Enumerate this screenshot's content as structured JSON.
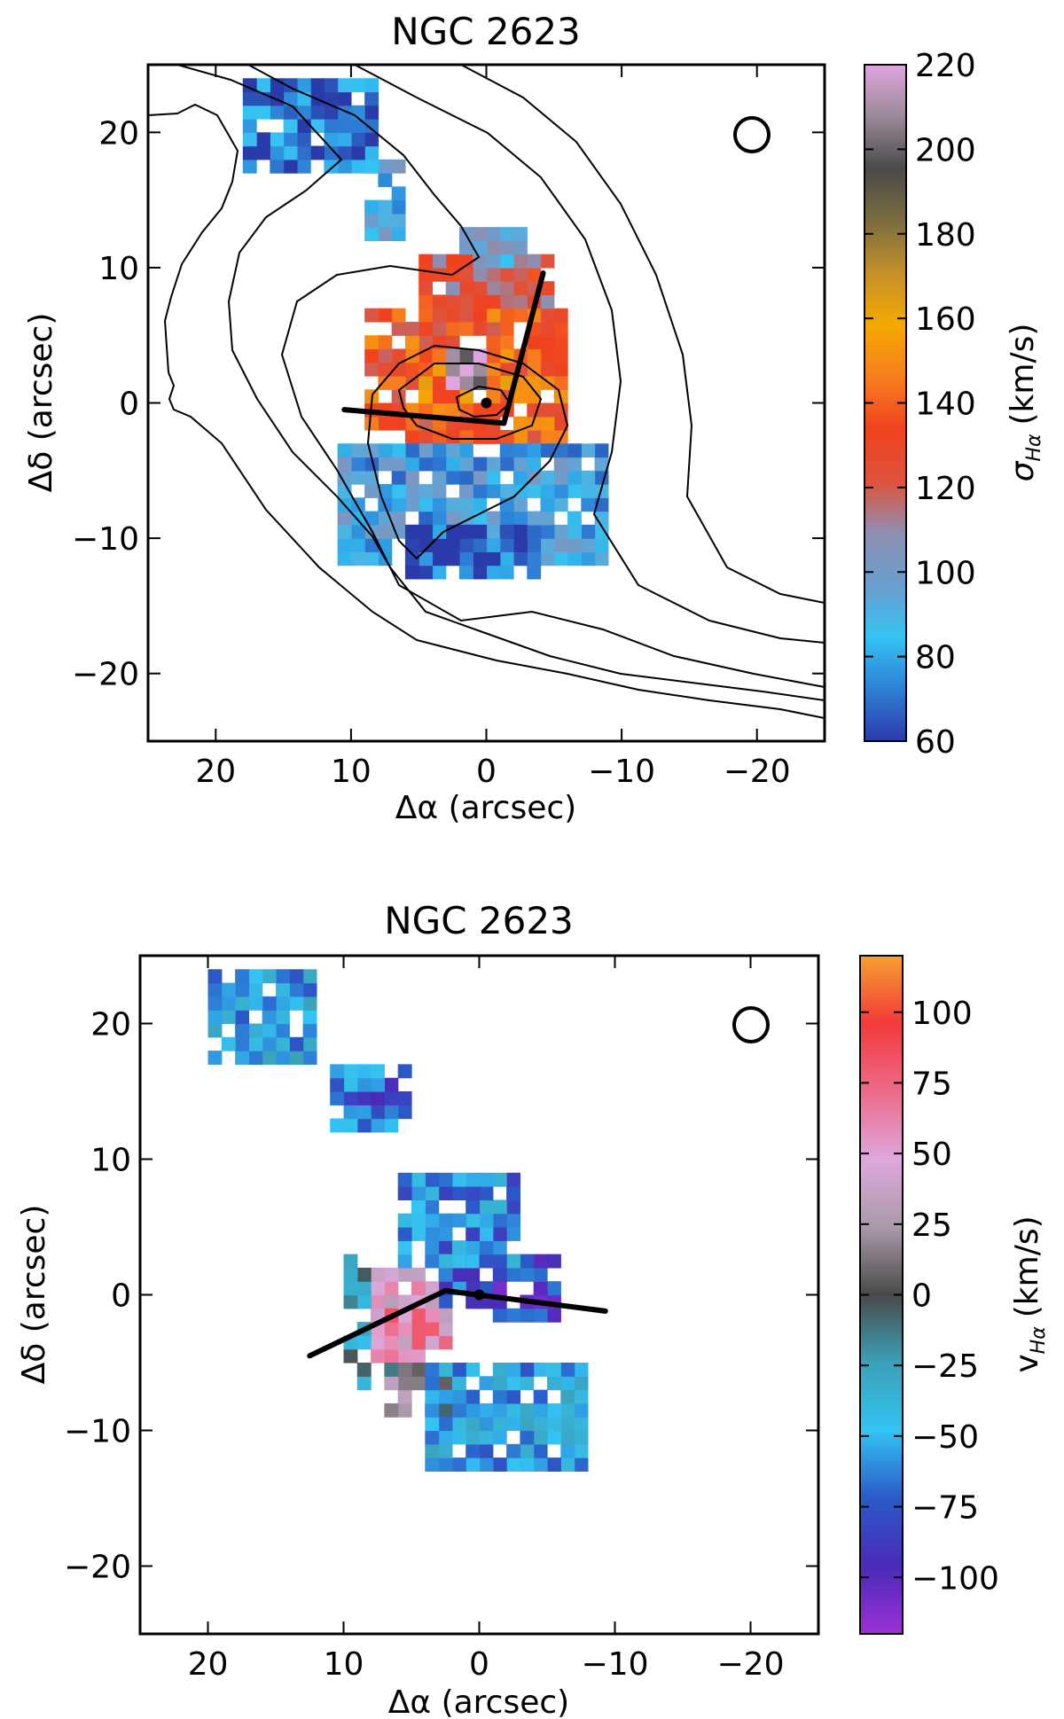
{
  "chart_data": [
    {
      "type": "heatmap",
      "title": "NGC 2623",
      "xlabel": "Δα (arcsec)",
      "ylabel": "Δδ (arcsec)",
      "xlim": [
        25,
        -25
      ],
      "ylim": [
        -25,
        25
      ],
      "x_ticks": [
        20,
        10,
        0,
        -10,
        -20
      ],
      "y_ticks": [
        20,
        10,
        0,
        -10,
        -20
      ],
      "x_tick_labels": [
        "20",
        "10",
        "0",
        "−10",
        "−20"
      ],
      "y_tick_labels": [
        "20",
        "10",
        "0",
        "−10",
        "−20"
      ],
      "colorbar": {
        "label": "σ_Hα (km/s)",
        "label_main": "σ",
        "label_sub": "Hα",
        "label_units": "(km/s)",
        "range": [
          60,
          220
        ],
        "ticks": [
          60,
          80,
          100,
          120,
          140,
          160,
          180,
          200,
          220
        ],
        "tick_labels": [
          "60",
          "80",
          "100",
          "120",
          "140",
          "160",
          "180",
          "200",
          "220"
        ],
        "colors": [
          "#2a3aa8",
          "#2e7fd6",
          "#34c3f2",
          "#6b9ecf",
          "#8e8fb1",
          "#e0523b",
          "#f0421f",
          "#f77f1f",
          "#f5a900",
          "#c4912a",
          "#7a6c40",
          "#4a4a4a",
          "#9a8a98",
          "#e0a6e0"
        ]
      },
      "psf_marker": "beam-circle",
      "nucleus": [
        0,
        0
      ],
      "position_angle_lines": [
        {
          "from": [
            10.5,
            -0.5
          ],
          "to": [
            -1.3,
            -1.5
          ]
        },
        {
          "from": [
            -1.3,
            -1.5
          ],
          "to": [
            -4.2,
            9.6
          ]
        }
      ],
      "pixel_regions": [
        {
          "x": [
            9,
            -6
          ],
          "y": [
            -3,
            7
          ],
          "value": 135
        },
        {
          "x": [
            5,
            -2
          ],
          "y": [
            -1,
            4
          ],
          "value": 150
        },
        {
          "x": [
            3,
            0
          ],
          "y": [
            1,
            4
          ],
          "value": 210
        },
        {
          "x": [
            11,
            -9
          ],
          "y": [
            -12,
            -3
          ],
          "value": 85
        },
        {
          "x": [
            6,
            -4
          ],
          "y": [
            -13,
            -9
          ],
          "value": 65
        },
        {
          "x": [
            5,
            -5
          ],
          "y": [
            7,
            11
          ],
          "value": 125
        },
        {
          "x": [
            2,
            -3
          ],
          "y": [
            10,
            13
          ],
          "value": 95
        },
        {
          "x": [
            9,
            6
          ],
          "y": [
            12,
            18
          ],
          "value": 90
        },
        {
          "x": [
            18,
            8
          ],
          "y": [
            17,
            24
          ],
          "value": 70
        }
      ]
    },
    {
      "type": "heatmap",
      "title": "NGC 2623",
      "xlabel": "Δα (arcsec)",
      "ylabel": "Δδ (arcsec)",
      "xlim": [
        25,
        -25
      ],
      "ylim": [
        -25,
        25
      ],
      "x_ticks": [
        20,
        10,
        0,
        -10,
        -20
      ],
      "y_ticks": [
        20,
        10,
        0,
        -10,
        -20
      ],
      "x_tick_labels": [
        "20",
        "10",
        "0",
        "−10",
        "−20"
      ],
      "y_tick_labels": [
        "20",
        "10",
        "0",
        "−10",
        "−20"
      ],
      "colorbar": {
        "label": "v_Hα (km/s)",
        "label_main": "v",
        "label_sub": "Hα",
        "label_units": "(km/s)",
        "range": [
          -120,
          120
        ],
        "ticks": [
          -100,
          -75,
          -50,
          -25,
          0,
          25,
          50,
          75,
          100
        ],
        "tick_labels": [
          "−100",
          "−75",
          "−50",
          "−25",
          "0",
          "25",
          "50",
          "75",
          "100"
        ],
        "colors": [
          "#9b30d9",
          "#4a2ab8",
          "#2a5ac8",
          "#34c3f2",
          "#3ba0b8",
          "#4a4a4a",
          "#a89aa8",
          "#dda8dc",
          "#ee6a8a",
          "#f23a3a",
          "#f7a030"
        ]
      },
      "psf_marker": "beam-circle",
      "nucleus": [
        0,
        0
      ],
      "position_angle_lines": [
        {
          "from": [
            12.5,
            -4.5
          ],
          "to": [
            2.5,
            0.3
          ]
        },
        {
          "from": [
            2.5,
            0.3
          ],
          "to": [
            -9.3,
            -1.2
          ]
        }
      ],
      "pixel_regions": [
        {
          "x": [
            -1,
            -6
          ],
          "y": [
            -2,
            3
          ],
          "value": -90
        },
        {
          "x": [
            3,
            -1
          ],
          "y": [
            -1,
            4
          ],
          "value": -70
        },
        {
          "x": [
            8,
            3
          ],
          "y": [
            -5,
            2
          ],
          "value": 45
        },
        {
          "x": [
            8,
            2
          ],
          "y": [
            -4,
            -1
          ],
          "value": 60
        },
        {
          "x": [
            7,
            1
          ],
          "y": [
            -9,
            -5
          ],
          "value": 10
        },
        {
          "x": [
            4,
            -8
          ],
          "y": [
            -13,
            -5
          ],
          "value": -50
        },
        {
          "x": [
            6,
            -3
          ],
          "y": [
            2,
            9
          ],
          "value": -60
        },
        {
          "x": [
            10,
            8
          ],
          "y": [
            -7,
            3
          ],
          "value": -20
        },
        {
          "x": [
            11,
            5
          ],
          "y": [
            12,
            17
          ],
          "value": -70
        },
        {
          "x": [
            20,
            12
          ],
          "y": [
            17,
            24
          ],
          "value": -50
        }
      ]
    }
  ]
}
